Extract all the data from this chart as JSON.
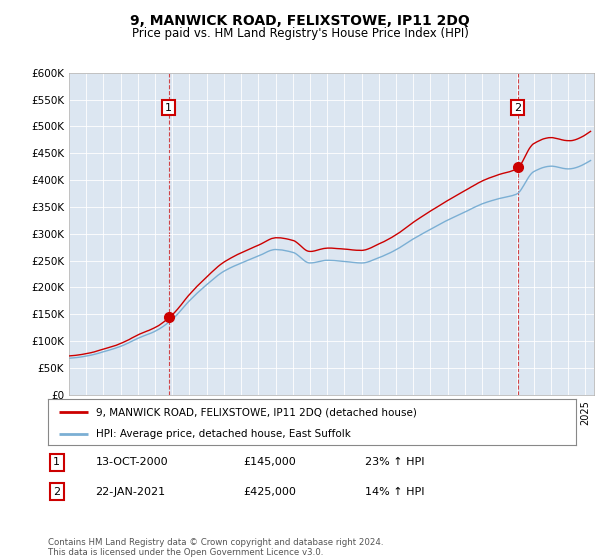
{
  "title": "9, MANWICK ROAD, FELIXSTOWE, IP11 2DQ",
  "subtitle": "Price paid vs. HM Land Registry's House Price Index (HPI)",
  "ylabel_ticks": [
    "£0",
    "£50K",
    "£100K",
    "£150K",
    "£200K",
    "£250K",
    "£300K",
    "£350K",
    "£400K",
    "£450K",
    "£500K",
    "£550K",
    "£600K"
  ],
  "ylim": [
    0,
    600000
  ],
  "xlim_start": 1995.0,
  "xlim_end": 2025.5,
  "sale1_date": 2000.79,
  "sale1_price": 145000,
  "sale1_label": "1",
  "sale1_hpi_pct": "23% ↑ HPI",
  "sale1_date_str": "13-OCT-2000",
  "sale2_date": 2021.06,
  "sale2_price": 425000,
  "sale2_label": "2",
  "sale2_hpi_pct": "14% ↑ HPI",
  "sale2_date_str": "22-JAN-2021",
  "red_line_color": "#cc0000",
  "blue_line_color": "#7bafd4",
  "plot_bg_color": "#dce6f1",
  "legend_line1": "9, MANWICK ROAD, FELIXSTOWE, IP11 2DQ (detached house)",
  "legend_line2": "HPI: Average price, detached house, East Suffolk",
  "footnote": "Contains HM Land Registry data © Crown copyright and database right 2024.\nThis data is licensed under the Open Government Licence v3.0.",
  "title_fontsize": 10,
  "subtitle_fontsize": 8.5,
  "tick_fontsize": 7.5
}
